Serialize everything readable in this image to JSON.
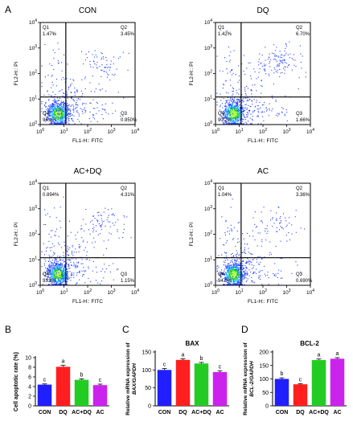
{
  "panel_labels": {
    "a": "A",
    "b": "B",
    "c": "C",
    "d": "D"
  },
  "flow_axis": {
    "xlabel": "FL1-H:: FITC",
    "ylabel": "FL2-H:: PI",
    "ticks": [
      {
        "base": "10",
        "exp": "0"
      },
      {
        "base": "10",
        "exp": "1"
      },
      {
        "base": "10",
        "exp": "2"
      },
      {
        "base": "10",
        "exp": "3"
      },
      {
        "base": "10",
        "exp": "4"
      }
    ]
  },
  "quadrant_names": [
    "Q1",
    "Q2",
    "Q3",
    "Q4"
  ],
  "flow_colors": {
    "low": "#1f3cff",
    "mid": "#21b5ff",
    "high": "#2bd82b",
    "peak": "#a6ff3a"
  },
  "chart_data": [
    {
      "type": "scatter",
      "title": "CON",
      "quadrants": {
        "Q1": "1.47%",
        "Q2": "3.45%",
        "Q3": "0.950%",
        "Q4": "94.1%"
      },
      "xlim": [
        0,
        4
      ],
      "ylim": [
        0,
        4
      ],
      "log_scale": true
    },
    {
      "type": "scatter",
      "title": "DQ",
      "quadrants": {
        "Q1": "1.42%",
        "Q2": "6.70%",
        "Q3": "1.66%",
        "Q4": "90.2%"
      },
      "xlim": [
        0,
        4
      ],
      "ylim": [
        0,
        4
      ],
      "log_scale": true
    },
    {
      "type": "scatter",
      "title": "AC+DQ",
      "quadrants": {
        "Q1": "0.894%",
        "Q2": "4.31%",
        "Q3": "1.15%",
        "Q4": "93.6%"
      },
      "xlim": [
        0,
        4
      ],
      "ylim": [
        0,
        4
      ],
      "log_scale": true
    },
    {
      "type": "scatter",
      "title": "AC",
      "quadrants": {
        "Q1": "1.04%",
        "Q2": "3.36%",
        "Q3": "0.690%",
        "Q4": "94.9%"
      },
      "xlim": [
        0,
        4
      ],
      "ylim": [
        0,
        4
      ],
      "log_scale": true
    },
    {
      "type": "bar",
      "title": "",
      "ylabel": "Cell apoptotic rate (%)",
      "categories": [
        "CON",
        "DQ",
        "AC+DQ",
        "AC"
      ],
      "values": [
        4.4,
        8.1,
        5.4,
        4.3
      ],
      "errors": [
        0.15,
        0.3,
        0.2,
        0.2
      ],
      "letters": [
        "c",
        "a",
        "b",
        "c"
      ],
      "colors": [
        "#1f1fff",
        "#ff1f1f",
        "#23cc23",
        "#cc22ee"
      ],
      "ylim": [
        0,
        10
      ],
      "yticks": [
        "0",
        "2",
        "4",
        "6",
        "8",
        "10"
      ]
    },
    {
      "type": "bar",
      "title": "BAX",
      "ylabel_line1": "Relative mRNA expression of",
      "ylabel_line2": "BAX/GAPDH",
      "categories": [
        "CON",
        "DQ",
        "AC+DQ",
        "AC"
      ],
      "values": [
        100,
        128,
        118,
        94
      ],
      "errors": [
        4,
        3,
        3,
        3
      ],
      "letters": [
        "c",
        "a",
        "b",
        "c"
      ],
      "colors": [
        "#1f1fff",
        "#ff1f1f",
        "#23cc23",
        "#cc22ee"
      ],
      "ylim": [
        0,
        150
      ],
      "yticks": [
        "0",
        "50",
        "100",
        "150"
      ]
    },
    {
      "type": "bar",
      "title": "BCL-2",
      "ylabel_line1": "Relative mRNA expression of",
      "ylabel_line2": "BCL-2/GAPDH",
      "categories": [
        "CON",
        "DQ",
        "AC+DQ",
        "AC"
      ],
      "values": [
        100,
        80,
        170,
        175
      ],
      "errors": [
        4,
        2,
        4,
        4
      ],
      "letters": [
        "b",
        "c",
        "a",
        "a"
      ],
      "colors": [
        "#1f1fff",
        "#ff1f1f",
        "#23cc23",
        "#cc22ee"
      ],
      "ylim": [
        0,
        200
      ],
      "yticks": [
        "0",
        "50",
        "100",
        "150",
        "200"
      ]
    }
  ]
}
